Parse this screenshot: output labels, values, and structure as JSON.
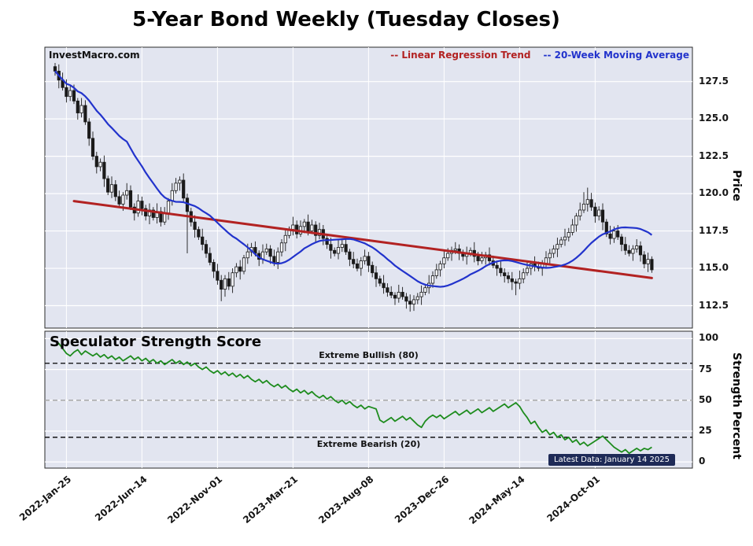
{
  "title": "5-Year Bond Weekly (Tuesday Closes)",
  "watermark": "InvestMacro.com",
  "legend": {
    "trend_label": "-- Linear Regression Trend",
    "ma_label": "-- 20-Week Moving Average"
  },
  "strength_title": "Speculator Strength Score",
  "labels": {
    "bullish": "Extreme Bullish (80)",
    "bearish": "Extreme Bearish (20)",
    "latest": "Latest Data: January 14 2025",
    "price_axis": "Price",
    "strength_axis": "Strength Percent"
  },
  "colors": {
    "panel_bg": "#e2e5f0",
    "grid": "#ffffff",
    "candle": "#1a1a1a",
    "candle_up_fill": "#f7f8fc",
    "trend": "#b22222",
    "ma": "#2233cc",
    "strength_line": "#1e8c1e",
    "threshold_black": "#000000",
    "threshold_gray": "#999999",
    "badge_bg": "#1e2a57",
    "badge_text": "#ffffff",
    "panel_border": "#2a2a2a"
  },
  "chart_data": [
    {
      "type": "candlestick",
      "title": "5-Year Bond Weekly (Tuesday Closes)",
      "ylabel": "Price",
      "ylim": [
        111.0,
        129.8
      ],
      "y_ticks": [
        112.5,
        115.0,
        117.5,
        120.0,
        122.5,
        125.0,
        127.5
      ],
      "x_ticks": [
        {
          "index": 3,
          "label": "2022-Jan-25"
        },
        {
          "index": 23,
          "label": "2022-Jun-14"
        },
        {
          "index": 43,
          "label": "2022-Nov-01"
        },
        {
          "index": 63,
          "label": "2023-Mar-21"
        },
        {
          "index": 83,
          "label": "2023-Aug-08"
        },
        {
          "index": 103,
          "label": "2023-Dec-26"
        },
        {
          "index": 123,
          "label": "2024-May-14"
        },
        {
          "index": 143,
          "label": "2024-Oct-01"
        }
      ],
      "series": [
        "Weekly price candles",
        "20-Week Moving Average",
        "Linear Regression Trend"
      ],
      "first_open": 128.5,
      "closes": [
        128.2,
        127.6,
        127.1,
        126.5,
        126.9,
        126.2,
        125.4,
        125.9,
        124.8,
        123.7,
        122.5,
        121.8,
        122.1,
        121.0,
        120.1,
        120.6,
        119.8,
        119.3,
        119.9,
        120.2,
        119.1,
        118.7,
        119.5,
        119.0,
        118.5,
        118.9,
        118.4,
        118.8,
        118.1,
        118.7,
        119.5,
        120.2,
        120.7,
        120.9,
        119.7,
        118.8,
        118.1,
        117.6,
        117.1,
        116.6,
        116.0,
        115.4,
        114.8,
        114.2,
        113.6,
        114.3,
        113.8,
        114.7,
        115.1,
        114.8,
        115.7,
        116.1,
        116.4,
        116.0,
        115.6,
        116.1,
        116.3,
        115.8,
        115.4,
        116.1,
        116.7,
        117.2,
        117.6,
        117.9,
        117.3,
        117.8,
        118.1,
        117.5,
        117.9,
        117.2,
        117.6,
        117.0,
        116.6,
        116.2,
        116.0,
        116.4,
        116.6,
        116.1,
        115.6,
        115.3,
        115.0,
        115.5,
        115.8,
        115.2,
        114.7,
        114.3,
        114.0,
        113.7,
        113.4,
        113.2,
        113.0,
        113.4,
        113.1,
        112.8,
        112.6,
        112.9,
        113.1,
        113.4,
        113.7,
        114.0,
        114.5,
        114.9,
        115.3,
        115.7,
        116.0,
        116.2,
        116.3,
        116.0,
        115.8,
        116.0,
        116.2,
        115.8,
        115.5,
        115.7,
        115.9,
        115.5,
        115.2,
        115.0,
        114.7,
        114.5,
        114.3,
        114.1,
        114.0,
        114.3,
        114.7,
        115.0,
        115.3,
        115.1,
        115.0,
        115.3,
        115.7,
        116.0,
        116.3,
        116.6,
        116.9,
        117.1,
        117.4,
        117.9,
        118.5,
        118.9,
        119.3,
        119.6,
        119.1,
        118.5,
        118.9,
        118.1,
        117.3,
        117.0,
        117.5,
        117.1,
        116.6,
        116.2,
        116.0,
        116.3,
        116.5,
        115.9,
        115.3,
        115.6,
        114.9
      ],
      "wick_up_pattern": [
        0.25,
        0.45,
        0.2,
        0.55,
        0.3,
        0.4,
        0.2,
        0.5,
        0.35,
        0.25,
        0.45,
        0.3
      ],
      "wick_down_pattern": [
        0.3,
        0.2,
        0.5,
        0.25,
        0.45,
        0.3,
        0.55,
        0.2,
        0.4,
        0.3,
        0.2,
        0.45
      ],
      "overrides": {
        "2": {
          "high": 128.1
        },
        "35": {
          "low": 116.0
        },
        "44": {
          "low": 112.8
        },
        "94": {
          "low": 112.1
        },
        "122": {
          "low": 113.2
        },
        "140": {
          "high": 120.1
        },
        "141": {
          "high": 120.4
        }
      },
      "ma_window": 20,
      "trend_line": {
        "start_index": 5,
        "start_value": 119.5,
        "end_index": 158,
        "end_value": 114.35
      }
    },
    {
      "type": "line",
      "title": "Speculator Strength Score",
      "ylabel": "Strength Percent",
      "ylim": [
        -5,
        106
      ],
      "y_ticks": [
        0,
        25,
        50,
        75,
        100
      ],
      "values": [
        98,
        96,
        92,
        88,
        86,
        89,
        91,
        87,
        90,
        88,
        86,
        88,
        85,
        87,
        84,
        86,
        83,
        85,
        82,
        84,
        86,
        83,
        85,
        82,
        84,
        81,
        83,
        80,
        82,
        79,
        81,
        83,
        80,
        82,
        79,
        81,
        78,
        80,
        77,
        75,
        77,
        74,
        72,
        74,
        71,
        73,
        70,
        72,
        69,
        71,
        68,
        70,
        67,
        65,
        67,
        64,
        66,
        63,
        61,
        63,
        60,
        62,
        59,
        57,
        59,
        56,
        58,
        55,
        57,
        54,
        52,
        54,
        51,
        53,
        50,
        48,
        50,
        47,
        49,
        46,
        44,
        46,
        43,
        45,
        44,
        43,
        34,
        32,
        34,
        36,
        33,
        35,
        37,
        34,
        36,
        33,
        30,
        28,
        33,
        36,
        38,
        36,
        38,
        35,
        37,
        39,
        41,
        38,
        40,
        42,
        39,
        41,
        43,
        40,
        42,
        44,
        41,
        43,
        45,
        47,
        44,
        46,
        48,
        45,
        40,
        36,
        31,
        33,
        28,
        24,
        26,
        22,
        24,
        20,
        22,
        18,
        20,
        16,
        18,
        14,
        16,
        13,
        15,
        17,
        19,
        21,
        18,
        15,
        12,
        10,
        8,
        10,
        7,
        9,
        11,
        9,
        11,
        10,
        12
      ],
      "thresholds": [
        {
          "value": 80,
          "label": "Extreme Bullish (80)",
          "style": "dashed-black"
        },
        {
          "value": 50,
          "label": "",
          "style": "dashed-gray"
        },
        {
          "value": 20,
          "label": "Extreme Bearish (20)",
          "style": "dashed-black"
        }
      ],
      "note": "Latest Data: January 14 2025"
    }
  ]
}
